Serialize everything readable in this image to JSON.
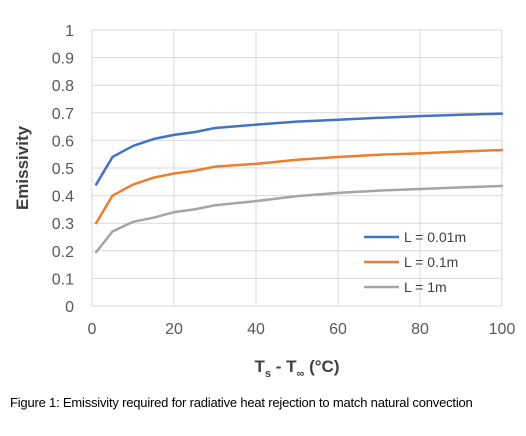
{
  "chart_data": {
    "type": "line",
    "xlabel": "T",
    "xlabel_parts": {
      "main": "T",
      "sub_s": "s",
      "minus": " - T",
      "sub_inf": "∞",
      "unit": " (°C)"
    },
    "ylabel": "Emissivity",
    "xlim": [
      0,
      100
    ],
    "ylim": [
      0,
      1
    ],
    "x_ticks": [
      "0",
      "20",
      "40",
      "60",
      "80",
      "100"
    ],
    "y_ticks": [
      "0",
      "0.1",
      "0.2",
      "0.3",
      "0.4",
      "0.5",
      "0.6",
      "0.7",
      "0.8",
      "0.9",
      "1"
    ],
    "grid": "on",
    "legend_position": "bottom-right",
    "x": [
      1,
      5,
      10,
      15,
      20,
      25,
      30,
      40,
      50,
      60,
      70,
      80,
      90,
      100
    ],
    "series": [
      {
        "name": "L = 0.01m",
        "color": "#4472C4",
        "values": [
          0.44,
          0.54,
          0.58,
          0.605,
          0.62,
          0.63,
          0.645,
          0.657,
          0.668,
          0.675,
          0.682,
          0.688,
          0.693,
          0.697
        ]
      },
      {
        "name": "L = 0.1m",
        "color": "#ED7D31",
        "values": [
          0.3,
          0.4,
          0.44,
          0.465,
          0.48,
          0.49,
          0.505,
          0.515,
          0.53,
          0.54,
          0.548,
          0.553,
          0.56,
          0.565
        ]
      },
      {
        "name": "L = 1m",
        "color": "#A5A5A5",
        "values": [
          0.195,
          0.27,
          0.305,
          0.32,
          0.34,
          0.35,
          0.365,
          0.38,
          0.398,
          0.41,
          0.418,
          0.424,
          0.43,
          0.435
        ]
      }
    ]
  },
  "caption": "Figure 1: Emissivity required for radiative heat rejection to match natural convection"
}
